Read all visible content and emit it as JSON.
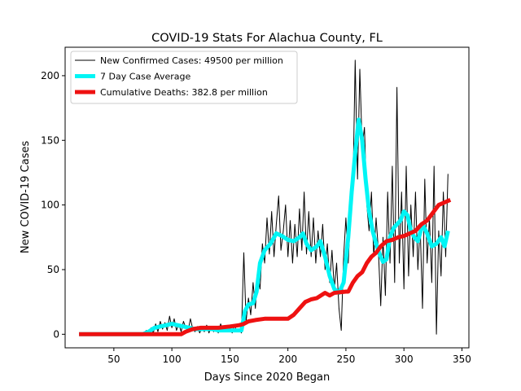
{
  "chart_data": {
    "type": "line",
    "title": "COVID-19 Stats For Alachua County, FL",
    "xlabel": "Days Since 2020 Began",
    "ylabel": "New COVID-19 Cases",
    "xlim": [
      8,
      356
    ],
    "ylim": [
      -10.5,
      222
    ],
    "xticks": [
      50,
      100,
      150,
      200,
      250,
      300,
      350
    ],
    "yticks": [
      0,
      50,
      100,
      150,
      200
    ],
    "grid": false,
    "legend_position": "top-left",
    "series": [
      {
        "name": "New Confirmed Cases: 49500 per million",
        "color": "#000000",
        "width": 1,
        "points": [
          [
            20,
            0
          ],
          [
            60,
            0
          ],
          [
            75,
            0
          ],
          [
            78,
            3
          ],
          [
            80,
            0
          ],
          [
            82,
            5
          ],
          [
            84,
            1
          ],
          [
            86,
            8
          ],
          [
            88,
            2
          ],
          [
            90,
            10
          ],
          [
            92,
            4
          ],
          [
            94,
            9
          ],
          [
            96,
            3
          ],
          [
            98,
            14
          ],
          [
            100,
            5
          ],
          [
            102,
            12
          ],
          [
            104,
            3
          ],
          [
            106,
            8
          ],
          [
            108,
            2
          ],
          [
            110,
            10
          ],
          [
            112,
            5
          ],
          [
            114,
            3
          ],
          [
            116,
            12
          ],
          [
            118,
            4
          ],
          [
            120,
            2
          ],
          [
            122,
            6
          ],
          [
            124,
            1
          ],
          [
            126,
            5
          ],
          [
            128,
            2
          ],
          [
            130,
            7
          ],
          [
            132,
            1
          ],
          [
            134,
            6
          ],
          [
            136,
            2
          ],
          [
            138,
            5
          ],
          [
            140,
            1
          ],
          [
            142,
            8
          ],
          [
            144,
            3
          ],
          [
            146,
            6
          ],
          [
            148,
            2
          ],
          [
            150,
            5
          ],
          [
            152,
            1
          ],
          [
            154,
            7
          ],
          [
            156,
            2
          ],
          [
            158,
            4
          ],
          [
            160,
            1
          ],
          [
            162,
            63
          ],
          [
            164,
            10
          ],
          [
            166,
            28
          ],
          [
            168,
            15
          ],
          [
            170,
            40
          ],
          [
            172,
            20
          ],
          [
            174,
            48
          ],
          [
            176,
            35
          ],
          [
            178,
            70
          ],
          [
            180,
            55
          ],
          [
            182,
            90
          ],
          [
            184,
            62
          ],
          [
            186,
            95
          ],
          [
            188,
            60
          ],
          [
            190,
            85
          ],
          [
            192,
            107
          ],
          [
            194,
            65
          ],
          [
            196,
            80
          ],
          [
            198,
            100
          ],
          [
            200,
            60
          ],
          [
            202,
            88
          ],
          [
            204,
            55
          ],
          [
            206,
            85
          ],
          [
            208,
            60
          ],
          [
            210,
            97
          ],
          [
            212,
            65
          ],
          [
            214,
            110
          ],
          [
            216,
            62
          ],
          [
            218,
            95
          ],
          [
            220,
            60
          ],
          [
            222,
            90
          ],
          [
            224,
            55
          ],
          [
            226,
            80
          ],
          [
            228,
            60
          ],
          [
            230,
            85
          ],
          [
            232,
            50
          ],
          [
            234,
            70
          ],
          [
            236,
            40
          ],
          [
            238,
            65
          ],
          [
            240,
            35
          ],
          [
            242,
            55
          ],
          [
            244,
            20
          ],
          [
            246,
            3
          ],
          [
            248,
            60
          ],
          [
            250,
            90
          ],
          [
            252,
            55
          ],
          [
            254,
            95
          ],
          [
            256,
            110
          ],
          [
            258,
            212
          ],
          [
            260,
            120
          ],
          [
            262,
            205
          ],
          [
            264,
            145
          ],
          [
            266,
            160
          ],
          [
            268,
            100
          ],
          [
            270,
            80
          ],
          [
            272,
            110
          ],
          [
            274,
            60
          ],
          [
            276,
            90
          ],
          [
            278,
            65
          ],
          [
            280,
            22
          ],
          [
            282,
            75
          ],
          [
            284,
            30
          ],
          [
            286,
            110
          ],
          [
            288,
            55
          ],
          [
            290,
            130
          ],
          [
            292,
            40
          ],
          [
            294,
            191
          ],
          [
            296,
            55
          ],
          [
            298,
            110
          ],
          [
            300,
            35
          ],
          [
            302,
            130
          ],
          [
            304,
            45
          ],
          [
            306,
            100
          ],
          [
            308,
            60
          ],
          [
            310,
            110
          ],
          [
            312,
            50
          ],
          [
            314,
            85
          ],
          [
            316,
            20
          ],
          [
            318,
            120
          ],
          [
            320,
            55
          ],
          [
            322,
            90
          ],
          [
            324,
            40
          ],
          [
            326,
            130
          ],
          [
            328,
            0
          ],
          [
            330,
            80
          ],
          [
            332,
            45
          ],
          [
            334,
            110
          ],
          [
            336,
            60
          ],
          [
            338,
            124
          ]
        ]
      },
      {
        "name": "7 Day Case Average",
        "color": "#00f5f5",
        "width": 5,
        "points": [
          [
            20,
            0
          ],
          [
            75,
            0
          ],
          [
            80,
            2
          ],
          [
            85,
            5
          ],
          [
            90,
            6
          ],
          [
            95,
            7
          ],
          [
            100,
            8
          ],
          [
            105,
            7
          ],
          [
            110,
            6
          ],
          [
            115,
            5
          ],
          [
            120,
            4
          ],
          [
            125,
            4
          ],
          [
            130,
            4
          ],
          [
            135,
            4
          ],
          [
            140,
            3
          ],
          [
            145,
            3
          ],
          [
            150,
            3
          ],
          [
            155,
            3
          ],
          [
            160,
            3
          ],
          [
            163,
            18
          ],
          [
            166,
            23
          ],
          [
            170,
            24
          ],
          [
            173,
            33
          ],
          [
            176,
            55
          ],
          [
            180,
            65
          ],
          [
            185,
            70
          ],
          [
            190,
            78
          ],
          [
            195,
            76
          ],
          [
            200,
            73
          ],
          [
            205,
            72
          ],
          [
            210,
            75
          ],
          [
            213,
            78
          ],
          [
            216,
            70
          ],
          [
            220,
            65
          ],
          [
            225,
            68
          ],
          [
            228,
            72
          ],
          [
            232,
            60
          ],
          [
            236,
            45
          ],
          [
            240,
            35
          ],
          [
            244,
            32
          ],
          [
            248,
            40
          ],
          [
            252,
            75
          ],
          [
            255,
            110
          ],
          [
            258,
            140
          ],
          [
            261,
            166
          ],
          [
            264,
            150
          ],
          [
            267,
            120
          ],
          [
            270,
            95
          ],
          [
            273,
            80
          ],
          [
            276,
            70
          ],
          [
            279,
            62
          ],
          [
            282,
            56
          ],
          [
            285,
            58
          ],
          [
            288,
            75
          ],
          [
            291,
            82
          ],
          [
            294,
            85
          ],
          [
            297,
            88
          ],
          [
            300,
            95
          ],
          [
            303,
            92
          ],
          [
            306,
            80
          ],
          [
            309,
            75
          ],
          [
            312,
            72
          ],
          [
            316,
            85
          ],
          [
            320,
            78
          ],
          [
            324,
            68
          ],
          [
            328,
            70
          ],
          [
            332,
            75
          ],
          [
            335,
            68
          ],
          [
            338,
            80
          ]
        ]
      },
      {
        "name": "Cumulative Deaths: 382.8 per million",
        "color": "#ee1111",
        "width": 5,
        "points": [
          [
            20,
            0
          ],
          [
            100,
            0
          ],
          [
            108,
            0
          ],
          [
            112,
            2
          ],
          [
            118,
            4
          ],
          [
            125,
            5
          ],
          [
            140,
            5
          ],
          [
            150,
            6
          ],
          [
            158,
            7
          ],
          [
            162,
            8
          ],
          [
            166,
            10
          ],
          [
            172,
            11
          ],
          [
            180,
            12
          ],
          [
            200,
            12
          ],
          [
            205,
            15
          ],
          [
            210,
            20
          ],
          [
            215,
            25
          ],
          [
            220,
            27
          ],
          [
            225,
            28
          ],
          [
            232,
            32
          ],
          [
            236,
            30
          ],
          [
            240,
            32
          ],
          [
            250,
            33
          ],
          [
            252,
            33
          ],
          [
            256,
            40
          ],
          [
            260,
            45
          ],
          [
            264,
            48
          ],
          [
            268,
            55
          ],
          [
            272,
            60
          ],
          [
            276,
            63
          ],
          [
            280,
            68
          ],
          [
            285,
            72
          ],
          [
            290,
            73
          ],
          [
            295,
            75
          ],
          [
            300,
            76
          ],
          [
            305,
            78
          ],
          [
            310,
            80
          ],
          [
            315,
            85
          ],
          [
            320,
            88
          ],
          [
            325,
            94
          ],
          [
            330,
            100
          ],
          [
            335,
            102
          ],
          [
            340,
            104
          ]
        ]
      }
    ]
  }
}
